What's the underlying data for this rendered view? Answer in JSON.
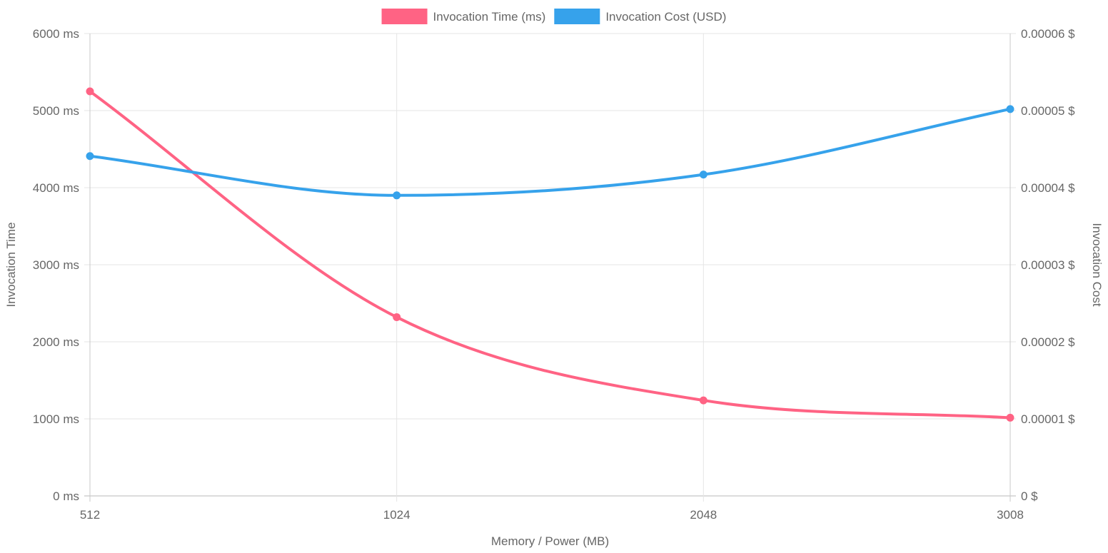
{
  "chart_data": {
    "type": "line",
    "x": [
      "512",
      "1024",
      "2048",
      "3008"
    ],
    "series": [
      {
        "name": "Invocation Time (ms)",
        "axis": "left",
        "color": "#ff6384",
        "values": [
          5250,
          2320,
          1240,
          1015
        ]
      },
      {
        "name": "Invocation Cost (USD)",
        "axis": "right",
        "color": "#36a2eb",
        "values": [
          4.41e-05,
          3.9e-05,
          4.17e-05,
          5.02e-05
        ]
      }
    ],
    "xlabel": "Memory / Power (MB)",
    "ylabel_left": "Invocation Time",
    "ylabel_right": "Invocation Cost",
    "ylim_left": [
      0,
      6000
    ],
    "ylim_right": [
      0,
      6e-05
    ],
    "yticks_left": [
      "0 ms",
      "1000 ms",
      "2000 ms",
      "3000 ms",
      "4000 ms",
      "5000 ms",
      "6000 ms"
    ],
    "yticks_right": [
      "0 $",
      "0.00001 $",
      "0.00002 $",
      "0.00003 $",
      "0.00004 $",
      "0.00005 $",
      "0.00006 $"
    ],
    "grid": true,
    "legend_position": "top"
  }
}
